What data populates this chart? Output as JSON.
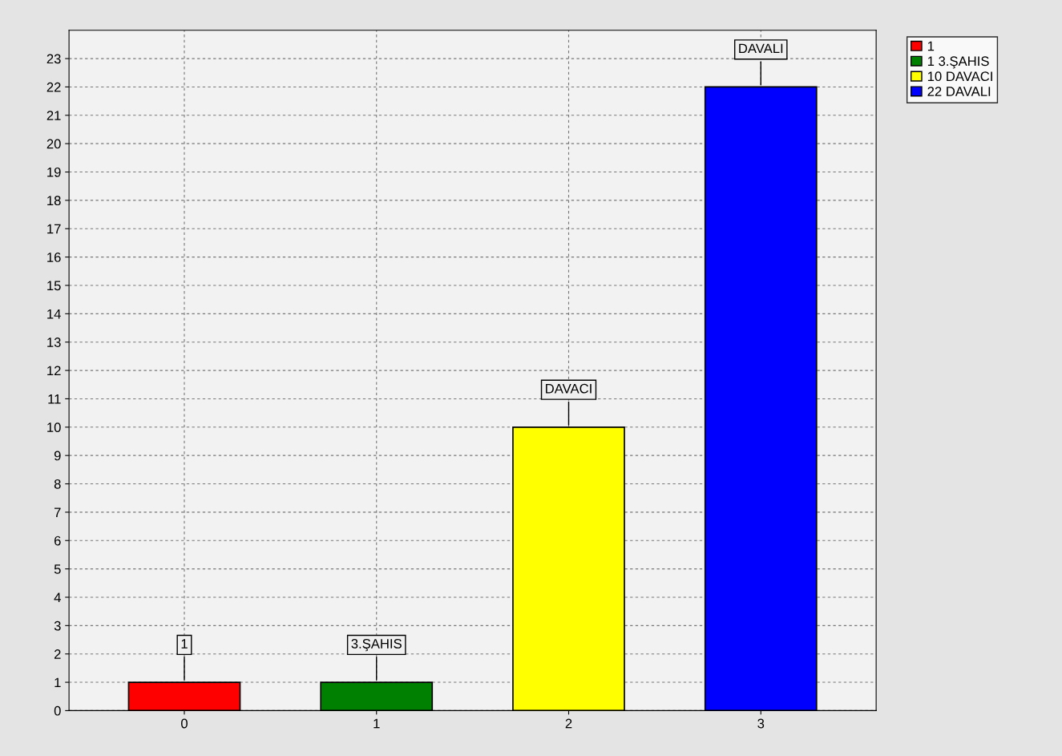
{
  "chart_data": {
    "type": "bar",
    "categories": [
      "0",
      "1",
      "2",
      "3"
    ],
    "series": [
      {
        "name": "1",
        "color": "#ff0000",
        "values": [
          1,
          null,
          null,
          null
        ]
      },
      {
        "name": "1 3.ŞAHIS",
        "color": "#008000",
        "values": [
          null,
          1,
          null,
          null
        ]
      },
      {
        "name": "10 DAVACI",
        "color": "#ffff00",
        "values": [
          null,
          null,
          10,
          null
        ]
      },
      {
        "name": "22 DAVALI",
        "color": "#0000ff",
        "values": [
          null,
          null,
          null,
          22
        ]
      }
    ],
    "annotations": [
      {
        "text": "1",
        "x": "0",
        "y": 1
      },
      {
        "text": "3.ŞAHIS",
        "x": "1",
        "y": 1
      },
      {
        "text": "DAVACI",
        "x": "2",
        "y": 10
      },
      {
        "text": "DAVALI",
        "x": "3",
        "y": 22
      }
    ],
    "ylim": [
      0,
      24
    ],
    "yticks": [
      0,
      1,
      2,
      3,
      4,
      5,
      6,
      7,
      8,
      9,
      10,
      11,
      12,
      13,
      14,
      15,
      16,
      17,
      18,
      19,
      20,
      21,
      22,
      23
    ],
    "grid": true,
    "legend": "top right"
  }
}
